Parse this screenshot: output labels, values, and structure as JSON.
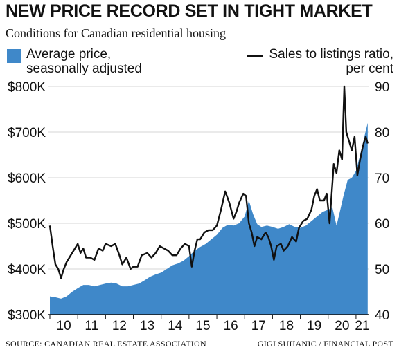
{
  "title": "NEW PRICE RECORD SET IN TIGHT MARKET",
  "subtitle": "Conditions for Canadian residential housing",
  "legend": {
    "left_line1": "Average price,",
    "left_line2": "seasonally adjusted",
    "right_line1": "Sales to listings ratio,",
    "right_line2": "per cent"
  },
  "footer": {
    "source": "SOURCE: CANADIAN REAL ESTATE ASSOCIATION",
    "credit": "GIGI SUHANIC / FINANCIAL POST"
  },
  "colors": {
    "area": "#3f88c9",
    "line": "#111111",
    "grid": "#d6d6d6",
    "text": "#111111"
  },
  "chart_data": {
    "type": "area",
    "x_range": [
      2009.95,
      2021.45
    ],
    "x_ticks": [
      {
        "value": 2010,
        "label": "10"
      },
      {
        "value": 2011,
        "label": "11"
      },
      {
        "value": 2012,
        "label": "12"
      },
      {
        "value": 2013,
        "label": "13"
      },
      {
        "value": 2014,
        "label": "14"
      },
      {
        "value": 2015,
        "label": "15"
      },
      {
        "value": 2016,
        "label": "16"
      },
      {
        "value": 2017,
        "label": "17"
      },
      {
        "value": 2018,
        "label": "18"
      },
      {
        "value": 2019,
        "label": "19"
      },
      {
        "value": 2020,
        "label": "20"
      },
      {
        "value": 2021,
        "label": "21"
      }
    ],
    "y_left": {
      "range": [
        300000,
        800000
      ],
      "ticks": [
        {
          "value": 800000,
          "label": "$800K"
        },
        {
          "value": 700000,
          "label": "$700K"
        },
        {
          "value": 600000,
          "label": "$600K"
        },
        {
          "value": 500000,
          "label": "$500K"
        },
        {
          "value": 400000,
          "label": "$400K"
        },
        {
          "value": 300000,
          "label": "$300K"
        }
      ]
    },
    "y_right": {
      "range": [
        40,
        90
      ],
      "ticks": [
        {
          "value": 90,
          "label": "90"
        },
        {
          "value": 80,
          "label": "80"
        },
        {
          "value": 70,
          "label": "70"
        },
        {
          "value": 60,
          "label": "60"
        },
        {
          "value": 50,
          "label": "50"
        },
        {
          "value": 40,
          "label": "40"
        }
      ]
    },
    "grid": true,
    "series": [
      {
        "name": "Average price, seasonally adjusted",
        "axis": "left",
        "kind": "area",
        "points": [
          [
            2010.0,
            340000
          ],
          [
            2010.2,
            338000
          ],
          [
            2010.4,
            335000
          ],
          [
            2010.6,
            340000
          ],
          [
            2010.8,
            350000
          ],
          [
            2011.0,
            358000
          ],
          [
            2011.2,
            365000
          ],
          [
            2011.4,
            365000
          ],
          [
            2011.6,
            362000
          ],
          [
            2011.8,
            365000
          ],
          [
            2012.0,
            368000
          ],
          [
            2012.2,
            370000
          ],
          [
            2012.4,
            368000
          ],
          [
            2012.6,
            362000
          ],
          [
            2012.8,
            362000
          ],
          [
            2013.0,
            365000
          ],
          [
            2013.2,
            368000
          ],
          [
            2013.4,
            375000
          ],
          [
            2013.6,
            383000
          ],
          [
            2013.8,
            388000
          ],
          [
            2014.0,
            392000
          ],
          [
            2014.2,
            400000
          ],
          [
            2014.4,
            408000
          ],
          [
            2014.6,
            412000
          ],
          [
            2014.8,
            418000
          ],
          [
            2015.0,
            428000
          ],
          [
            2015.2,
            440000
          ],
          [
            2015.4,
            448000
          ],
          [
            2015.6,
            455000
          ],
          [
            2015.8,
            465000
          ],
          [
            2016.0,
            475000
          ],
          [
            2016.2,
            490000
          ],
          [
            2016.4,
            497000
          ],
          [
            2016.6,
            495000
          ],
          [
            2016.8,
            500000
          ],
          [
            2017.0,
            515000
          ],
          [
            2017.15,
            550000
          ],
          [
            2017.3,
            520000
          ],
          [
            2017.45,
            498000
          ],
          [
            2017.6,
            492000
          ],
          [
            2017.8,
            495000
          ],
          [
            2018.0,
            492000
          ],
          [
            2018.2,
            488000
          ],
          [
            2018.4,
            492000
          ],
          [
            2018.6,
            498000
          ],
          [
            2018.8,
            492000
          ],
          [
            2019.0,
            490000
          ],
          [
            2019.2,
            495000
          ],
          [
            2019.4,
            505000
          ],
          [
            2019.6,
            515000
          ],
          [
            2019.8,
            525000
          ],
          [
            2020.0,
            530000
          ],
          [
            2020.15,
            535000
          ],
          [
            2020.3,
            495000
          ],
          [
            2020.4,
            520000
          ],
          [
            2020.55,
            560000
          ],
          [
            2020.7,
            595000
          ],
          [
            2020.85,
            600000
          ],
          [
            2021.0,
            615000
          ],
          [
            2021.15,
            650000
          ],
          [
            2021.3,
            690000
          ],
          [
            2021.42,
            720000
          ]
        ]
      },
      {
        "name": "Sales to listings ratio, per cent",
        "axis": "right",
        "kind": "line",
        "points": [
          [
            2010.0,
            59.5
          ],
          [
            2010.1,
            55.0
          ],
          [
            2010.2,
            51.0
          ],
          [
            2010.3,
            50.0
          ],
          [
            2010.4,
            48.0
          ],
          [
            2010.5,
            50.0
          ],
          [
            2010.6,
            51.5
          ],
          [
            2010.75,
            53.0
          ],
          [
            2010.9,
            54.5
          ],
          [
            2011.0,
            55.5
          ],
          [
            2011.1,
            53.5
          ],
          [
            2011.2,
            54.5
          ],
          [
            2011.3,
            52.5
          ],
          [
            2011.45,
            52.5
          ],
          [
            2011.6,
            52.0
          ],
          [
            2011.75,
            54.5
          ],
          [
            2011.9,
            54.0
          ],
          [
            2012.0,
            55.5
          ],
          [
            2012.2,
            55.0
          ],
          [
            2012.35,
            55.5
          ],
          [
            2012.5,
            53.0
          ],
          [
            2012.6,
            51.0
          ],
          [
            2012.75,
            52.5
          ],
          [
            2012.9,
            50.0
          ],
          [
            2013.0,
            50.5
          ],
          [
            2013.15,
            50.5
          ],
          [
            2013.3,
            53.0
          ],
          [
            2013.5,
            53.5
          ],
          [
            2013.65,
            52.5
          ],
          [
            2013.8,
            53.5
          ],
          [
            2013.95,
            55.0
          ],
          [
            2014.1,
            54.5
          ],
          [
            2014.25,
            54.0
          ],
          [
            2014.4,
            53.0
          ],
          [
            2014.55,
            53.0
          ],
          [
            2014.7,
            54.5
          ],
          [
            2014.85,
            55.5
          ],
          [
            2015.0,
            55.0
          ],
          [
            2015.1,
            50.5
          ],
          [
            2015.2,
            54.0
          ],
          [
            2015.3,
            56.5
          ],
          [
            2015.4,
            56.5
          ],
          [
            2015.55,
            58.0
          ],
          [
            2015.7,
            58.5
          ],
          [
            2015.85,
            58.5
          ],
          [
            2016.0,
            59.5
          ],
          [
            2016.15,
            63.0
          ],
          [
            2016.3,
            67.0
          ],
          [
            2016.45,
            64.5
          ],
          [
            2016.6,
            61.0
          ],
          [
            2016.7,
            62.5
          ],
          [
            2016.8,
            64.5
          ],
          [
            2016.95,
            66.5
          ],
          [
            2017.05,
            66.0
          ],
          [
            2017.15,
            60.0
          ],
          [
            2017.25,
            58.0
          ],
          [
            2017.35,
            55.0
          ],
          [
            2017.45,
            57.0
          ],
          [
            2017.6,
            56.5
          ],
          [
            2017.75,
            58.0
          ],
          [
            2017.85,
            57.0
          ],
          [
            2017.95,
            55.0
          ],
          [
            2018.05,
            52.0
          ],
          [
            2018.15,
            55.0
          ],
          [
            2018.3,
            55.5
          ],
          [
            2018.4,
            54.0
          ],
          [
            2018.55,
            55.0
          ],
          [
            2018.7,
            57.0
          ],
          [
            2018.85,
            56.0
          ],
          [
            2018.95,
            59.0
          ],
          [
            2019.1,
            60.5
          ],
          [
            2019.25,
            61.0
          ],
          [
            2019.4,
            63.0
          ],
          [
            2019.5,
            66.0
          ],
          [
            2019.6,
            67.5
          ],
          [
            2019.7,
            65.0
          ],
          [
            2019.85,
            65.0
          ],
          [
            2019.95,
            66.5
          ],
          [
            2020.05,
            60.0
          ],
          [
            2020.2,
            73.0
          ],
          [
            2020.3,
            71.0
          ],
          [
            2020.4,
            76.0
          ],
          [
            2020.5,
            74.0
          ],
          [
            2020.58,
            90.0
          ],
          [
            2020.65,
            80.0
          ],
          [
            2020.75,
            78.0
          ],
          [
            2020.85,
            76.0
          ],
          [
            2020.95,
            79.0
          ],
          [
            2021.05,
            70.5
          ],
          [
            2021.15,
            74.0
          ],
          [
            2021.25,
            77.0
          ],
          [
            2021.35,
            79.0
          ],
          [
            2021.42,
            77.5
          ]
        ]
      }
    ]
  }
}
